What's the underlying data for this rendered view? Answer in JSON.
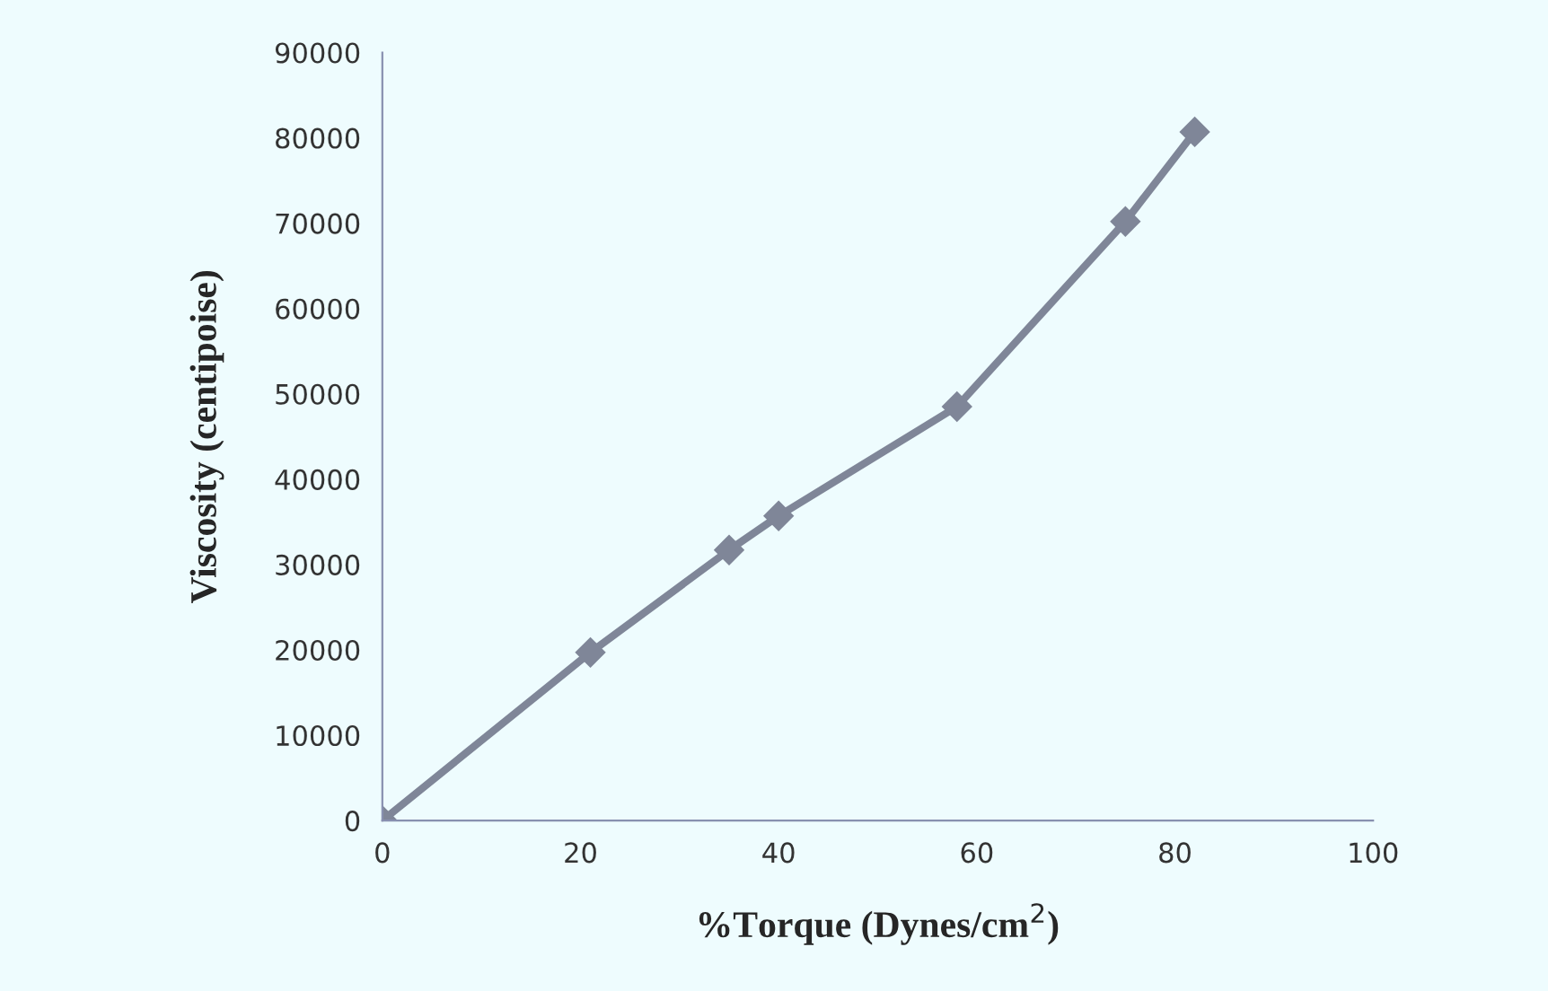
{
  "chart_data": {
    "type": "line",
    "xlabel": "%Torque (Dynes/cm$^{2}$)",
    "ylabel": "Viscosity (centipoise)",
    "x": [
      0,
      21,
      35,
      40,
      58,
      75,
      82
    ],
    "series": [
      {
        "color": "#7f8698",
        "values": [
          0,
          19700,
          31700,
          35700,
          48500,
          70200,
          80700
        ]
      }
    ],
    "xlim": [
      0,
      100
    ],
    "xticks": [
      0,
      20,
      40,
      60,
      80,
      100
    ],
    "ylim": [
      0,
      90000
    ],
    "yticks": [
      0,
      10000,
      20000,
      30000,
      40000,
      50000,
      60000,
      70000,
      80000,
      90000
    ],
    "grid": false,
    "marker": "diamond",
    "line_style": "solid"
  }
}
